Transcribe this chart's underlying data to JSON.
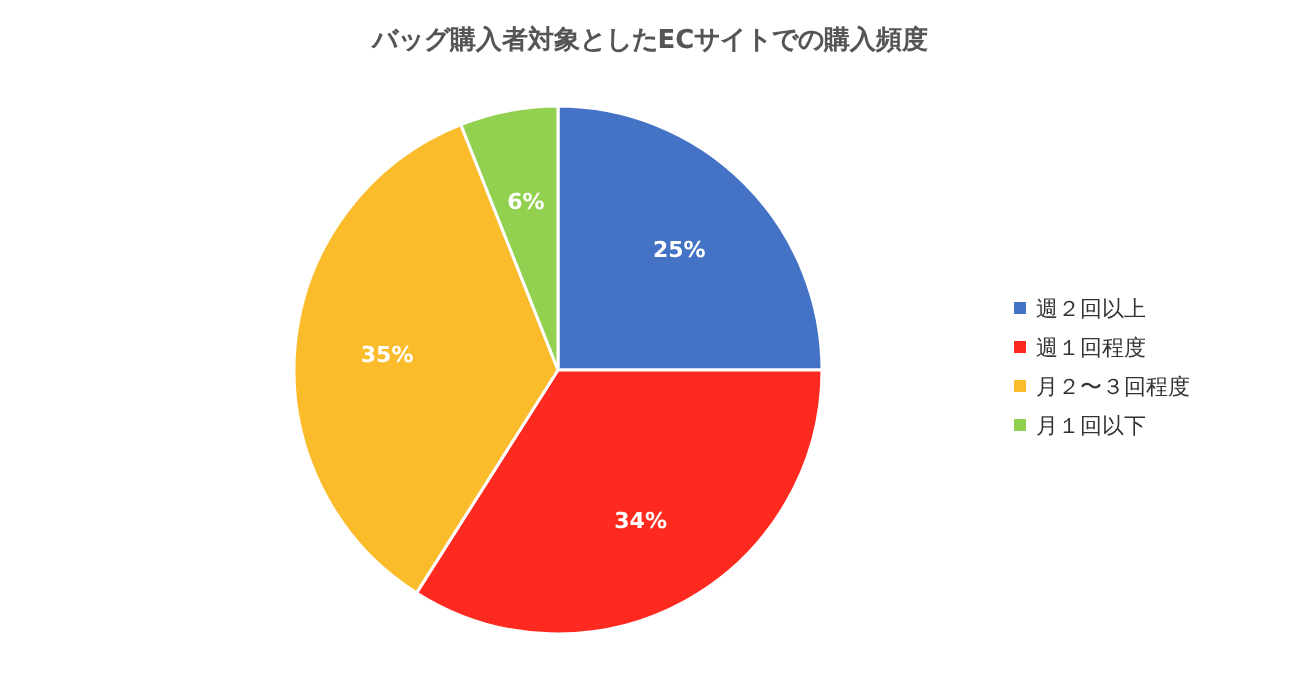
{
  "chart_data": {
    "type": "pie",
    "title": "バッグ購入者対象としたECサイトでの購入頻度",
    "categories": [
      "週２回以上",
      "週１回程度",
      "月２〜３回程度",
      "月１回以下"
    ],
    "values": [
      25,
      34,
      35,
      6
    ],
    "value_labels": [
      "25%",
      "34%",
      "35%",
      "6%"
    ],
    "colors": [
      "#4472c4",
      "#ff2a1f",
      "#fbbc2c",
      "#92d050"
    ],
    "legend": "right"
  }
}
